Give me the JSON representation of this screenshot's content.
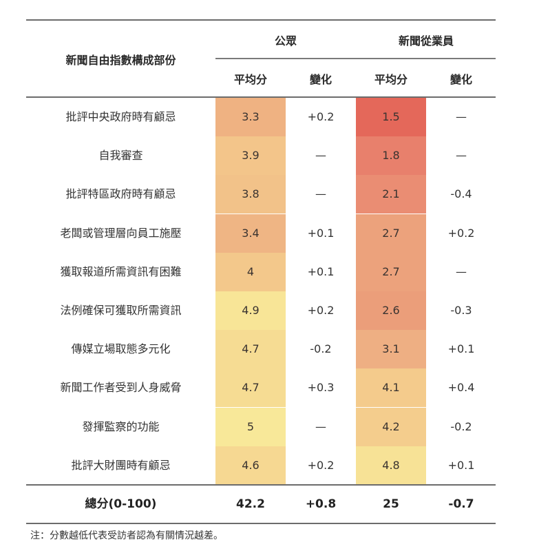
{
  "table": {
    "header": {
      "component_label": "新聞自由指數構成部份",
      "groups": [
        {
          "label": "公眾"
        },
        {
          "label": "新聞從業員"
        }
      ],
      "subheaders": [
        "平均分",
        "變化",
        "平均分",
        "變化"
      ]
    },
    "rows": [
      {
        "label": "批評中央政府時有顧忌",
        "public_avg": "3.3",
        "public_change": "+0.2",
        "pro_avg": "1.5",
        "pro_change": "—",
        "public_color": "#efb282",
        "pro_color": "#e4685a"
      },
      {
        "label": "自我審查",
        "public_avg": "3.9",
        "public_change": "—",
        "pro_avg": "1.8",
        "pro_change": "—",
        "public_color": "#f3c58a",
        "pro_color": "#e8806c"
      },
      {
        "label": "批評特區政府時有顧忌",
        "public_avg": "3.8",
        "public_change": "—",
        "pro_avg": "2.1",
        "pro_change": "-0.4",
        "public_color": "#f2c289",
        "pro_color": "#ea8d73"
      },
      {
        "label": "老闆或管理層向員工施壓",
        "public_avg": "3.4",
        "public_change": "+0.1",
        "pro_avg": "2.7",
        "pro_change": "+0.2",
        "public_color": "#efb584",
        "pro_color": "#eca27c"
      },
      {
        "label": "獲取報道所需資訊有困難",
        "public_avg": "4",
        "public_change": "+0.1",
        "pro_avg": "2.7",
        "pro_change": "—",
        "public_color": "#f3c88b",
        "pro_color": "#eca27c"
      },
      {
        "label": "法例確保可獲取所需資訊",
        "public_avg": "4.9",
        "public_change": "+0.2",
        "pro_avg": "2.6",
        "pro_change": "-0.3",
        "public_color": "#f8e597",
        "pro_color": "#eb9e7a"
      },
      {
        "label": "傳媒立場取態多元化",
        "public_avg": "4.7",
        "public_change": "-0.2",
        "pro_avg": "3.1",
        "pro_change": "+0.1",
        "public_color": "#f6dc93",
        "pro_color": "#eeaf83"
      },
      {
        "label": "新聞工作者受到人身威脅",
        "public_avg": "4.7",
        "public_change": "+0.3",
        "pro_avg": "4.1",
        "pro_change": "+0.4",
        "public_color": "#f6dc93",
        "pro_color": "#f4cb8c"
      },
      {
        "label": "發揮監察的功能",
        "public_avg": "5",
        "public_change": "—",
        "pro_avg": "4.2",
        "pro_change": "-0.2",
        "public_color": "#f8e899",
        "pro_color": "#f4cd8d"
      },
      {
        "label": "批評大財團時有顧忌",
        "public_avg": "4.6",
        "public_change": "+0.2",
        "pro_avg": "4.8",
        "pro_change": "+0.1",
        "public_color": "#f6d892",
        "pro_color": "#f7e296"
      }
    ],
    "total": {
      "label": "總分(0-100)",
      "public_avg": "42.2",
      "public_change": "+0.8",
      "pro_avg": "25",
      "pro_change": "-0.7"
    }
  },
  "note": "注：分數越低代表受訪者認為有關情況越差。",
  "colors": {
    "rule": "#6b6b6b",
    "low_score": "#e4685a",
    "high_score": "#f8e899"
  }
}
